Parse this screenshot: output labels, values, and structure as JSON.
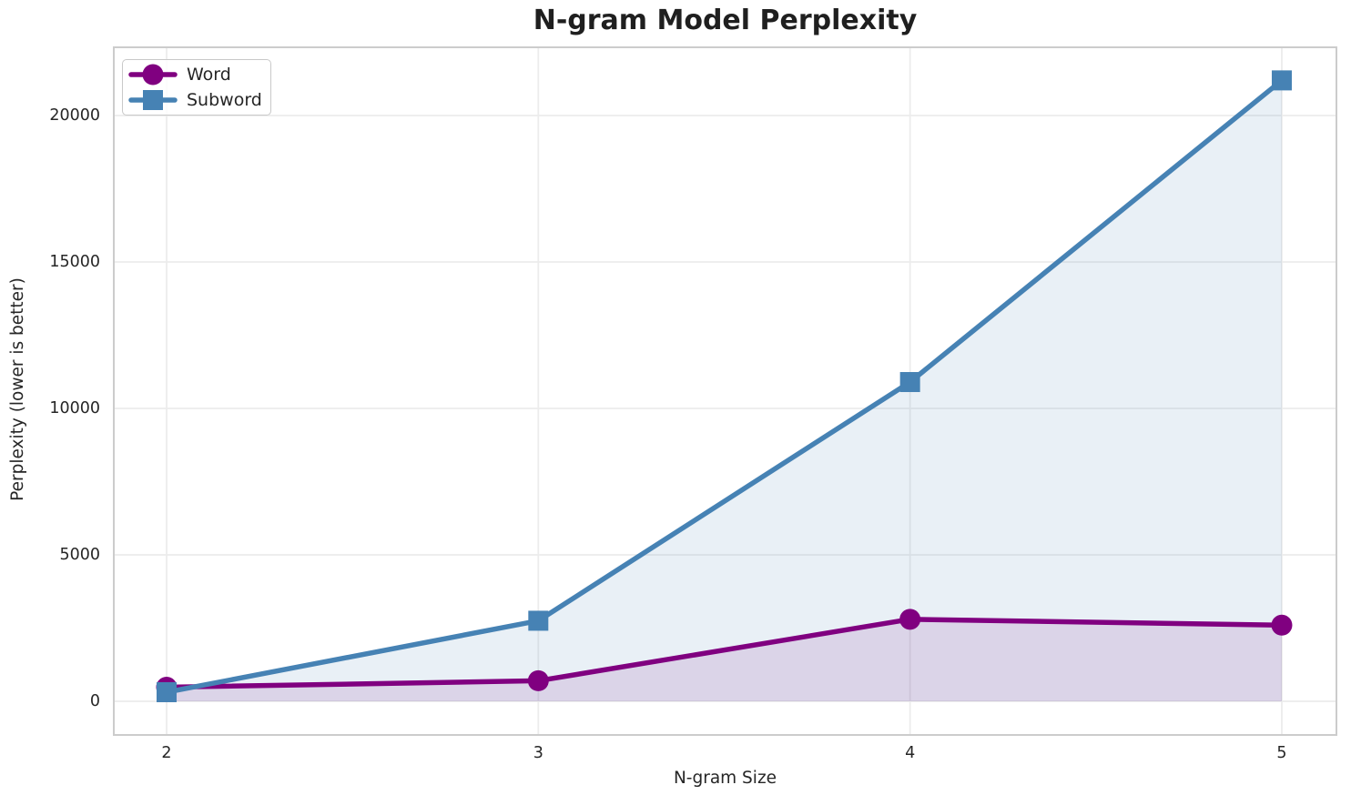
{
  "chart_data": {
    "type": "line",
    "title": "N-gram Model Perplexity",
    "xlabel": "N-gram Size",
    "ylabel": "Perplexity (lower is better)",
    "x": [
      2,
      3,
      4,
      5
    ],
    "xticks": [
      2,
      3,
      4,
      5
    ],
    "yticks": [
      0,
      5000,
      10000,
      15000,
      20000
    ],
    "xlim": [
      1.858,
      5.147
    ],
    "ylim": [
      -1150,
      22330
    ],
    "grid": true,
    "legend_position": "upper left",
    "fill_to_zero": true,
    "series": [
      {
        "name": "Word",
        "marker": "circle",
        "color": "#800080",
        "fill_alpha": 0.12,
        "values": [
          480,
          700,
          2800,
          2600
        ]
      },
      {
        "name": "Subword",
        "marker": "square",
        "color": "#4682b4",
        "fill_alpha": 0.12,
        "values": [
          310,
          2750,
          10900,
          21200
        ]
      }
    ],
    "colors": {
      "grid": "#ececec",
      "spine": "#cccccc",
      "text": "#262626",
      "title": "#1f1f1f",
      "legend_border": "#c9c9c9",
      "background": "#ffffff"
    }
  }
}
